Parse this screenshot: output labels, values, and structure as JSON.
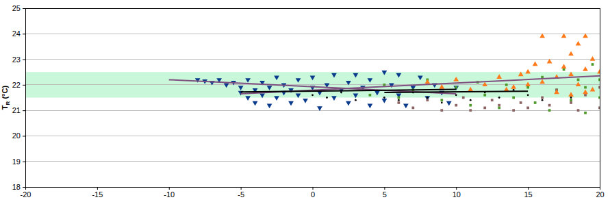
{
  "chart_data": {
    "type": "scatter",
    "ylabel": "TR (°C)",
    "xlim": [
      -20,
      20
    ],
    "xticks": [
      -20,
      -15,
      -10,
      -5,
      0,
      5,
      10,
      15,
      20
    ],
    "ylim": [
      18,
      25
    ],
    "yticks": [
      18,
      19,
      20,
      21,
      22,
      23,
      24,
      25
    ],
    "grid": true,
    "bands": [
      {
        "from": 21.5,
        "to": 22.5,
        "color": "#c8f7da"
      }
    ],
    "series": [
      {
        "type": "scatter",
        "marker": "triangle-down",
        "color": "#0a3a8c",
        "x": [
          -8,
          -7.5,
          -7,
          -6.5,
          -6,
          -5.5,
          -5,
          -5,
          -4.5,
          -4.5,
          -4,
          -4,
          -3.5,
          -3.5,
          -3,
          -3,
          -2.5,
          -2.5,
          -2,
          -2,
          -1.5,
          -1.5,
          -1,
          -1,
          -0.5,
          0,
          0,
          0.5,
          0.5,
          1,
          1.5,
          1.5,
          2,
          2.5,
          2.5,
          3,
          3,
          3.5,
          4,
          4,
          4.5,
          5,
          5,
          5.5,
          6,
          6,
          6.5,
          7,
          7.5,
          8,
          8.5,
          9,
          9.5,
          10
        ],
        "values": [
          22.2,
          22.15,
          22.1,
          22.2,
          22.0,
          22.1,
          21.7,
          21.9,
          21.5,
          22.2,
          21.3,
          21.8,
          22.1,
          21.6,
          21.2,
          21.9,
          22.3,
          21.5,
          21.7,
          22.0,
          21.3,
          21.8,
          22.2,
          21.6,
          21.4,
          21.9,
          22.3,
          21.1,
          21.7,
          22.0,
          21.5,
          22.4,
          21.8,
          21.3,
          22.1,
          21.6,
          22.4,
          21.9,
          21.2,
          22.2,
          21.7,
          22.5,
          21.4,
          22.0,
          21.6,
          22.4,
          21.2,
          21.9,
          22.3,
          21.5,
          22.0,
          21.7,
          21.3,
          21.9
        ]
      },
      {
        "type": "scatter",
        "marker": "square",
        "color": "#4f9a2c",
        "x": [
          4,
          5,
          6,
          7,
          8,
          9,
          10,
          11,
          11.5,
          12,
          13,
          13.5,
          14,
          15,
          15.5,
          16,
          16.5,
          17,
          17.5,
          18,
          18.5,
          19,
          19,
          19.5,
          20,
          20
        ],
        "values": [
          21.6,
          22.0,
          21.5,
          21.8,
          22.2,
          21.4,
          21.9,
          21.2,
          22.1,
          21.6,
          21.1,
          22.0,
          21.5,
          21.9,
          21.3,
          22.3,
          21.0,
          21.8,
          22.6,
          21.4,
          22.2,
          20.9,
          21.9,
          22.8,
          21.5,
          22.2
        ]
      },
      {
        "type": "scatter",
        "marker": "square",
        "color": "#8c6464",
        "x": [
          6,
          7,
          8,
          9,
          10,
          10.5,
          11,
          12,
          12.5,
          13,
          14,
          14.5,
          15,
          16,
          16.5,
          17,
          18,
          18.5,
          19,
          20,
          20
        ],
        "values": [
          21.3,
          21.1,
          21.4,
          21.0,
          21.2,
          21.5,
          21.0,
          21.1,
          21.4,
          21.2,
          21.0,
          21.3,
          21.1,
          21.5,
          21.2,
          21.8,
          21.3,
          21.0,
          21.6,
          21.1,
          21.9
        ]
      },
      {
        "type": "scatter",
        "marker": "circle",
        "color": "#000000",
        "x": [
          0,
          1,
          2,
          3,
          4,
          5,
          6,
          7,
          8,
          9,
          10,
          11,
          12,
          13,
          14,
          15,
          16,
          17,
          18
        ],
        "values": [
          21.6,
          21.5,
          21.7,
          21.4,
          21.8,
          21.5,
          21.4,
          21.7,
          21.5,
          21.3,
          21.6,
          21.4,
          21.7,
          21.5,
          21.8,
          21.6,
          21.4,
          21.7,
          21.5
        ]
      },
      {
        "type": "scatter",
        "marker": "triangle",
        "color": "#ff7a1a",
        "x": [
          8,
          9,
          10,
          11,
          12,
          13,
          14,
          15,
          15.5,
          16,
          16.5,
          17,
          17.5,
          17.5,
          18,
          18,
          18.5,
          18.5,
          19,
          19,
          19.5,
          19.5,
          20,
          16,
          17,
          18,
          19,
          14.5,
          13.5,
          15
        ],
        "values": [
          22.1,
          21.9,
          22.2,
          21.8,
          22.0,
          22.3,
          21.9,
          22.5,
          22.8,
          23.9,
          22.9,
          22.3,
          22.7,
          23.9,
          22.4,
          23.2,
          22.0,
          23.6,
          22.6,
          23.9,
          21.8,
          23.0,
          22.5,
          22.1,
          21.7,
          21.6,
          21.7,
          22.4,
          21.8,
          22.0
        ]
      },
      {
        "type": "line",
        "color": "#7f4f80",
        "x": [
          -10,
          10
        ],
        "values": [
          22.2,
          21.65
        ]
      },
      {
        "type": "line",
        "color": "#7f4f80",
        "x": [
          -5,
          20
        ],
        "values": [
          21.65,
          22.35
        ]
      },
      {
        "type": "line",
        "color": "#000000",
        "x": [
          -5,
          10
        ],
        "values": [
          21.72,
          21.82
        ]
      },
      {
        "type": "line",
        "color": "#000000",
        "x": [
          5,
          15
        ],
        "values": [
          21.7,
          21.75
        ]
      }
    ]
  }
}
